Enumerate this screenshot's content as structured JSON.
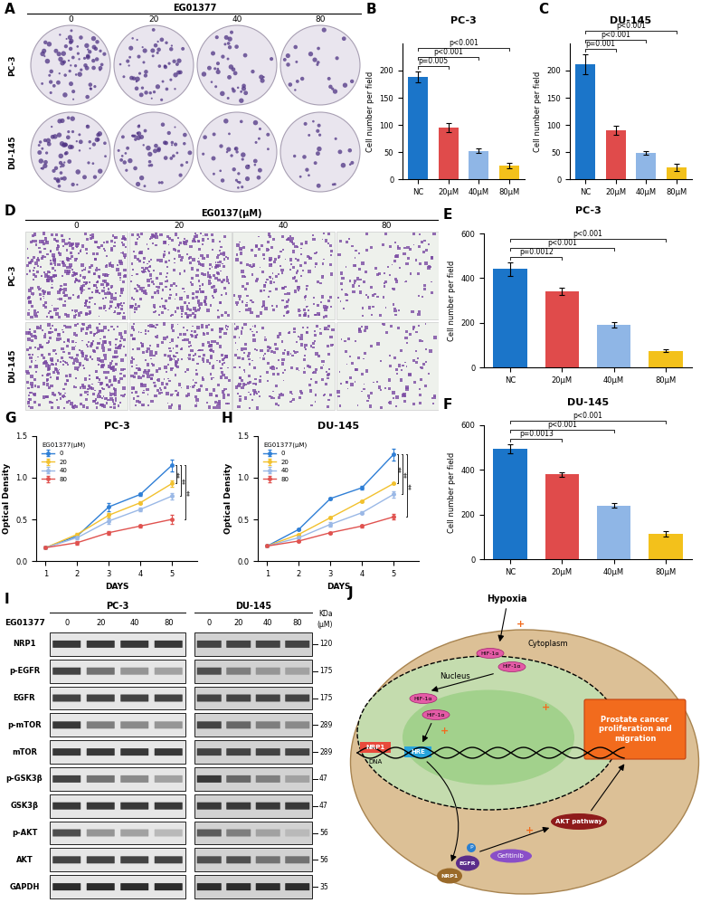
{
  "panel_letters": [
    "A",
    "B",
    "C",
    "D",
    "E",
    "F",
    "G",
    "H",
    "I",
    "J"
  ],
  "colony_images": {
    "title": "EG01377",
    "concentrations": [
      "0",
      "20",
      "40",
      "80"
    ],
    "cell_lines": [
      "PC-3",
      "DU-145"
    ]
  },
  "transwell_images": {
    "title": "EG0137(μM)",
    "concentrations": [
      "0",
      "20",
      "40",
      "80"
    ],
    "cell_lines": [
      "PC-3",
      "DU-145"
    ]
  },
  "chart_data": [
    {
      "type": "bar",
      "title": "PC-3",
      "categories": [
        "NC",
        "20μM",
        "40μM",
        "80μM"
      ],
      "values": [
        188,
        95,
        52,
        25
      ],
      "errors": [
        10,
        9,
        4,
        5
      ],
      "colors": [
        "#1b75c9",
        "#e04b4b",
        "#8fb6e6",
        "#f3c11b"
      ],
      "y_label": "Cell number per field",
      "ylim": [
        0,
        250
      ],
      "yticks": [
        0,
        50,
        100,
        150,
        200
      ],
      "comparisons": [
        {
          "from": "NC",
          "to": "20μM",
          "label": "p=0.005"
        },
        {
          "from": "NC",
          "to": "40μM",
          "label": "p<0.001"
        },
        {
          "from": "NC",
          "to": "80μM",
          "label": "p<0.001"
        }
      ]
    },
    {
      "type": "bar",
      "title": "DU-145",
      "categories": [
        "NC",
        "20μM",
        "40μM",
        "80μM"
      ],
      "values": [
        212,
        90,
        48,
        22
      ],
      "errors": [
        18,
        9,
        3,
        7
      ],
      "colors": [
        "#1b75c9",
        "#e04b4b",
        "#8fb6e6",
        "#f3c11b"
      ],
      "y_label": "Cell number per field",
      "ylim": [
        0,
        250
      ],
      "yticks": [
        0,
        50,
        100,
        150,
        200
      ],
      "comparisons": [
        {
          "from": "NC",
          "to": "20μM",
          "label": "p=0.001"
        },
        {
          "from": "NC",
          "to": "40μM",
          "label": "p<0.001"
        },
        {
          "from": "NC",
          "to": "80μM",
          "label": "p<0.001"
        }
      ]
    },
    {
      "type": "bar",
      "title": "PC-3",
      "categories": [
        "NC",
        "20μM",
        "40μM",
        "80μM"
      ],
      "values": [
        440,
        340,
        190,
        75
      ],
      "errors": [
        30,
        15,
        12,
        8
      ],
      "colors": [
        "#1b75c9",
        "#e04b4b",
        "#8fb6e6",
        "#f3c11b"
      ],
      "y_label": "Cell number per field",
      "ylim": [
        0,
        600
      ],
      "yticks": [
        0,
        200,
        400,
        600
      ],
      "comparisons": [
        {
          "from": "NC",
          "to": "20μM",
          "label": "p=0.0012"
        },
        {
          "from": "NC",
          "to": "40μM",
          "label": "p<0.001"
        },
        {
          "from": "NC",
          "to": "80μM",
          "label": "p<0.001"
        }
      ]
    },
    {
      "type": "bar",
      "title": "DU-145",
      "categories": [
        "NC",
        "20μM",
        "40μM",
        "80μM"
      ],
      "values": [
        495,
        380,
        240,
        115
      ],
      "errors": [
        20,
        10,
        10,
        12
      ],
      "colors": [
        "#1b75c9",
        "#e04b4b",
        "#8fb6e6",
        "#f3c11b"
      ],
      "y_label": "Cell number per field",
      "ylim": [
        0,
        600
      ],
      "yticks": [
        0,
        200,
        400,
        600
      ],
      "comparisons": [
        {
          "from": "NC",
          "to": "20μM",
          "label": "p=0.0013"
        },
        {
          "from": "NC",
          "to": "40μM",
          "label": "p<0.001"
        },
        {
          "from": "NC",
          "to": "80μM",
          "label": "p<0.001"
        }
      ]
    },
    {
      "type": "line",
      "title": "PC-3",
      "x": [
        1,
        2,
        3,
        4,
        5
      ],
      "xlim": [
        0.7,
        5.8
      ],
      "xticks": [
        1,
        2,
        3,
        4,
        5
      ],
      "ylim": [
        0,
        1.5
      ],
      "yticks": [
        {
          "value": 0,
          "label": "0.0"
        },
        {
          "value": 0.5,
          "label": "0.5"
        },
        {
          "value": 1,
          "label": "1.0"
        },
        {
          "value": 1.5,
          "label": "1.5"
        }
      ],
      "x_label": "DAYS",
      "y_label": "Optical Density",
      "legend_title": "EG01377(μM)",
      "legend": "upper left",
      "marker": "o",
      "series": [
        {
          "name": "0",
          "color": "#2f7fd6",
          "values": [
            0.16,
            0.3,
            0.65,
            0.8,
            1.15
          ],
          "errors": [
            0.01,
            0.02,
            0.05,
            0.02,
            0.07
          ]
        },
        {
          "name": "20",
          "color": "#f2c12e",
          "values": [
            0.16,
            0.32,
            0.55,
            0.7,
            0.93
          ],
          "errors": [
            0.01,
            0.02,
            0.03,
            0.02,
            0.04
          ]
        },
        {
          "name": "40",
          "color": "#9ab8e6",
          "values": [
            0.16,
            0.28,
            0.48,
            0.62,
            0.78
          ],
          "errors": [
            0.01,
            0.02,
            0.03,
            0.02,
            0.04
          ]
        },
        {
          "name": "80",
          "color": "#e0524f",
          "values": [
            0.16,
            0.22,
            0.34,
            0.42,
            0.5
          ],
          "errors": [
            0.01,
            0.02,
            0.02,
            0.02,
            0.05
          ]
        }
      ],
      "significance": [
        {
          "from": "0",
          "to": "20",
          "label": "**"
        },
        {
          "from": "0",
          "to": "40",
          "label": "**"
        },
        {
          "from": "0",
          "to": "80",
          "label": "**"
        }
      ]
    },
    {
      "type": "line",
      "title": "DU-145",
      "x": [
        1,
        2,
        3,
        4,
        5
      ],
      "xlim": [
        0.7,
        5.8
      ],
      "xticks": [
        1,
        2,
        3,
        4,
        5
      ],
      "ylim": [
        0,
        1.5
      ],
      "yticks": [
        {
          "value": 0,
          "label": "0.0"
        },
        {
          "value": 0.5,
          "label": "0.5"
        },
        {
          "value": 1,
          "label": "1.0"
        },
        {
          "value": 1.5,
          "label": "1.5"
        }
      ],
      "x_label": "DAYS",
      "y_label": "Optical Density",
      "legend_title": "EG01377(μM)",
      "legend": "upper left",
      "marker": "o",
      "series": [
        {
          "name": "0",
          "color": "#2f7fd6",
          "values": [
            0.18,
            0.38,
            0.75,
            0.88,
            1.28
          ],
          "errors": [
            0.01,
            0.01,
            0.01,
            0.02,
            0.07
          ]
        },
        {
          "name": "20",
          "color": "#f2c12e",
          "values": [
            0.18,
            0.32,
            0.52,
            0.72,
            0.93
          ],
          "errors": [
            0.01,
            0.01,
            0.01,
            0.01,
            0.01
          ]
        },
        {
          "name": "40",
          "color": "#9ab8e6",
          "values": [
            0.18,
            0.28,
            0.44,
            0.58,
            0.8
          ],
          "errors": [
            0.01,
            0.01,
            0.03,
            0.02,
            0.04
          ]
        },
        {
          "name": "80",
          "color": "#e0524f",
          "values": [
            0.18,
            0.24,
            0.34,
            0.42,
            0.53
          ],
          "errors": [
            0.01,
            0.01,
            0.01,
            0.02,
            0.03
          ]
        }
      ],
      "significance": [
        {
          "from": "0",
          "to": "20",
          "label": "**"
        },
        {
          "from": "0",
          "to": "40",
          "label": "**"
        },
        {
          "from": "0",
          "to": "80",
          "label": "**"
        }
      ]
    }
  ],
  "western_blot": {
    "title": "EG01377",
    "unit": "(μM)",
    "kda_header": "KDa",
    "concentrations": [
      "0",
      "20",
      "40",
      "80"
    ],
    "cell_lines": [
      "PC-3",
      "DU-145"
    ],
    "rows": [
      {
        "name": "NRP1",
        "kda": 120,
        "band_intensity": {
          "PC-3": [
            0.85,
            0.85,
            0.85,
            0.85
          ],
          "DU-145": [
            0.8,
            0.8,
            0.8,
            0.8
          ]
        }
      },
      {
        "name": "p-EGFR",
        "kda": 175,
        "band_intensity": {
          "PC-3": [
            0.8,
            0.6,
            0.45,
            0.4
          ],
          "DU-145": [
            0.75,
            0.55,
            0.45,
            0.4
          ]
        }
      },
      {
        "name": "EGFR",
        "kda": 175,
        "band_intensity": {
          "PC-3": [
            0.8,
            0.8,
            0.8,
            0.8
          ],
          "DU-145": [
            0.8,
            0.8,
            0.8,
            0.8
          ]
        }
      },
      {
        "name": "p-mTOR",
        "kda": 289,
        "band_intensity": {
          "PC-3": [
            0.85,
            0.55,
            0.5,
            0.45
          ],
          "DU-145": [
            0.8,
            0.65,
            0.55,
            0.5
          ]
        }
      },
      {
        "name": "mTOR",
        "kda": 289,
        "band_intensity": {
          "PC-3": [
            0.85,
            0.85,
            0.85,
            0.85
          ],
          "DU-145": [
            0.8,
            0.8,
            0.8,
            0.8
          ]
        }
      },
      {
        "name": "p-GSK3β",
        "kda": 47,
        "band_intensity": {
          "PC-3": [
            0.8,
            0.6,
            0.5,
            0.4
          ],
          "DU-145": [
            0.85,
            0.65,
            0.55,
            0.4
          ]
        }
      },
      {
        "name": "GSK3β",
        "kda": 47,
        "band_intensity": {
          "PC-3": [
            0.85,
            0.85,
            0.85,
            0.85
          ],
          "DU-145": [
            0.85,
            0.85,
            0.85,
            0.85
          ]
        }
      },
      {
        "name": "p-AKT",
        "kda": 56,
        "band_intensity": {
          "PC-3": [
            0.75,
            0.45,
            0.4,
            0.3
          ],
          "DU-145": [
            0.7,
            0.55,
            0.4,
            0.3
          ]
        }
      },
      {
        "name": "AKT",
        "kda": 56,
        "band_intensity": {
          "PC-3": [
            0.8,
            0.8,
            0.8,
            0.8
          ],
          "DU-145": [
            0.75,
            0.75,
            0.6,
            0.6
          ]
        }
      },
      {
        "name": "GAPDH",
        "kda": 35,
        "band_intensity": {
          "PC-3": [
            0.9,
            0.9,
            0.9,
            0.9
          ],
          "DU-145": [
            0.9,
            0.9,
            0.9,
            0.9
          ]
        }
      }
    ]
  },
  "diagram": {
    "hypoxia": "Hypoxia",
    "cytoplasm": "Cytoplasm",
    "nucleus": "Nucleus",
    "hif": "HIF-1α",
    "nrp1_gene": "NRP1",
    "dna": "DNA",
    "hre": "HRE",
    "nrp1_receptor": "NRP1",
    "egfr": "EGFR",
    "phospho": "P",
    "gefitinib": "Gefitinib",
    "akt": "AKT pathway",
    "plus": "+",
    "outcome_lines": [
      "Prostate cancer",
      "proliferation and",
      "migration"
    ]
  }
}
